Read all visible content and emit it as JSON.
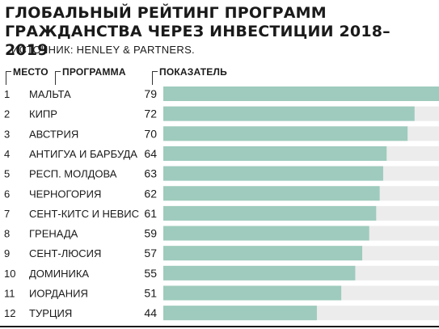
{
  "title": "ГЛОБАЛЬНЫЙ РЕЙТИНГ ПРОГРАММ ГРАЖДАНСТВА ЧЕРЕЗ ИНВЕСТИЦИИ 2018–2019",
  "source": "ИСТОЧНИК: HENLEY & PARTNERS.",
  "headers": {
    "rank": "МЕСТО",
    "program": "ПРОГРАММА",
    "score": "ПОКАЗАТЕЛЬ"
  },
  "colors": {
    "bar": "#9ecbbd",
    "track": "#ececec",
    "text": "#1a1a1a"
  },
  "chart_data": {
    "type": "bar",
    "orientation": "horizontal",
    "title": "ГЛОБАЛЬНЫЙ РЕЙТИНГ ПРОГРАММ ГРАЖДАНСТВА ЧЕРЕЗ ИНВЕСТИЦИИ 2018–2019",
    "xlim": [
      0,
      79
    ],
    "grid": false,
    "ranks": [
      "1",
      "2",
      "3",
      "4",
      "5",
      "6",
      "7",
      "8",
      "9",
      "10",
      "11",
      "12"
    ],
    "categories": [
      "МАЛЬТА",
      "КИПР",
      "АВСТРИЯ",
      "АНТИГУА И БАРБУДА",
      "РЕСП. МОЛДОВА",
      "ЧЕРНОГОРИЯ",
      "СЕНТ-КИТС И НЕВИС",
      "ГРЕНАДА",
      "СЕНТ-ЛЮСИЯ",
      "ДОМИНИКА",
      "ИОРДАНИЯ",
      "ТУРЦИЯ"
    ],
    "values": [
      79,
      72,
      70,
      64,
      63,
      62,
      61,
      59,
      57,
      55,
      51,
      44
    ]
  }
}
